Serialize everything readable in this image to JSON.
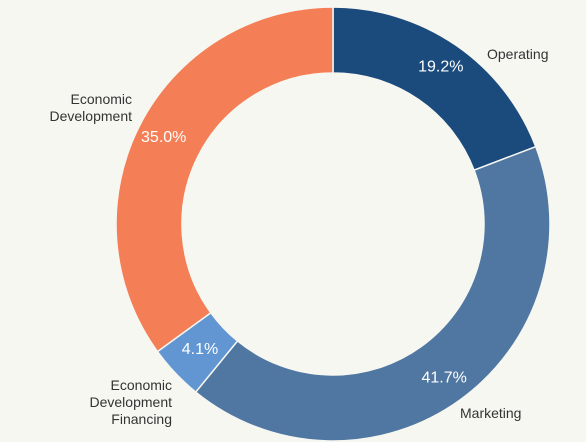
{
  "chart_data": {
    "type": "donut",
    "categories": [
      "Operating",
      "Marketing",
      "Economic Development Financing",
      "Economic Development"
    ],
    "values": [
      19.2,
      41.7,
      4.1,
      35.0
    ],
    "value_labels": [
      "19.2%",
      "41.7%",
      "4.1%",
      "35.0%"
    ],
    "colors": [
      "#1b4b7c",
      "#4f77a1",
      "#6196d2",
      "#f47f56"
    ]
  }
}
